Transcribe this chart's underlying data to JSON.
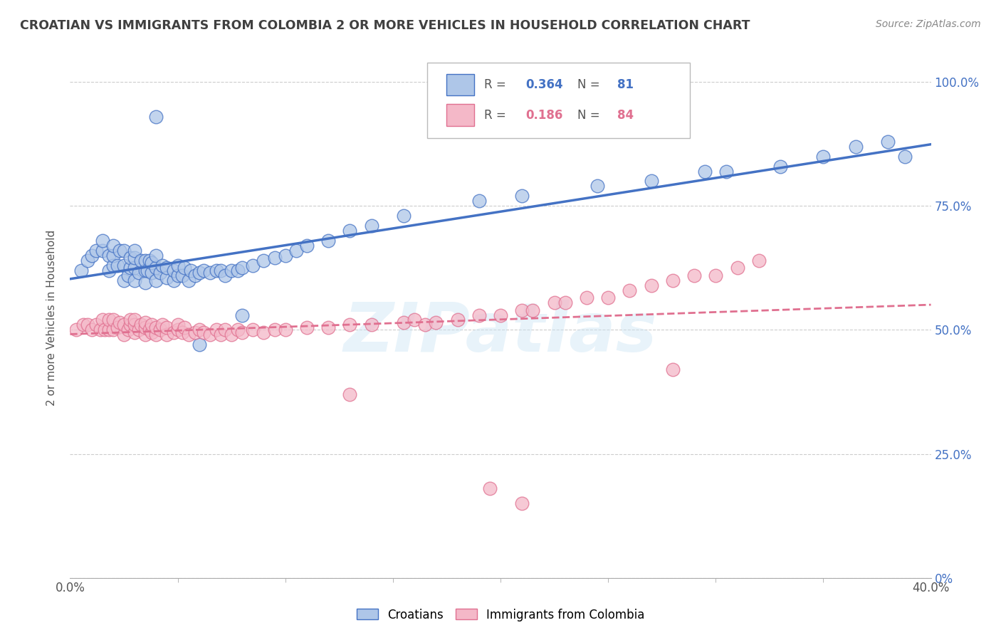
{
  "title": "CROATIAN VS IMMIGRANTS FROM COLOMBIA 2 OR MORE VEHICLES IN HOUSEHOLD CORRELATION CHART",
  "source": "Source: ZipAtlas.com",
  "ylabel": "2 or more Vehicles in Household",
  "xlim": [
    0.0,
    0.4
  ],
  "ylim": [
    0.0,
    1.05
  ],
  "ytick_vals": [
    0.0,
    0.25,
    0.5,
    0.75,
    1.0
  ],
  "ytick_labels_right": [
    "0%",
    "25.0%",
    "50.0%",
    "75.0%",
    "100.0%"
  ],
  "watermark": "ZIPatlas",
  "blue_fill_color": "#aec6e8",
  "blue_edge_color": "#4472c4",
  "pink_fill_color": "#f4b8c8",
  "pink_edge_color": "#e07090",
  "blue_line_color": "#4472c4",
  "pink_line_color": "#e07090",
  "background_color": "#ffffff",
  "grid_color": "#cccccc",
  "title_color": "#404040",
  "source_color": "#888888",
  "right_axis_color": "#4472c4",
  "legend_box_color": "#ffffff",
  "legend_border_color": "#bbbbbb",
  "blue_scatter_x": [
    0.005,
    0.008,
    0.01,
    0.012,
    0.015,
    0.015,
    0.018,
    0.018,
    0.02,
    0.02,
    0.02,
    0.022,
    0.023,
    0.025,
    0.025,
    0.025,
    0.027,
    0.028,
    0.028,
    0.03,
    0.03,
    0.03,
    0.03,
    0.032,
    0.033,
    0.035,
    0.035,
    0.035,
    0.036,
    0.037,
    0.038,
    0.038,
    0.04,
    0.04,
    0.04,
    0.042,
    0.043,
    0.045,
    0.045,
    0.048,
    0.048,
    0.05,
    0.05,
    0.052,
    0.053,
    0.055,
    0.056,
    0.058,
    0.06,
    0.062,
    0.065,
    0.068,
    0.07,
    0.072,
    0.075,
    0.078,
    0.08,
    0.085,
    0.09,
    0.095,
    0.1,
    0.105,
    0.11,
    0.12,
    0.13,
    0.14,
    0.155,
    0.19,
    0.21,
    0.245,
    0.27,
    0.295,
    0.305,
    0.33,
    0.35,
    0.365,
    0.38,
    0.388,
    0.04,
    0.06,
    0.08
  ],
  "blue_scatter_y": [
    0.62,
    0.64,
    0.65,
    0.66,
    0.66,
    0.68,
    0.62,
    0.65,
    0.63,
    0.65,
    0.67,
    0.63,
    0.66,
    0.6,
    0.63,
    0.66,
    0.61,
    0.625,
    0.645,
    0.6,
    0.625,
    0.645,
    0.66,
    0.615,
    0.64,
    0.595,
    0.62,
    0.64,
    0.62,
    0.64,
    0.615,
    0.635,
    0.6,
    0.625,
    0.65,
    0.615,
    0.63,
    0.605,
    0.625,
    0.6,
    0.62,
    0.61,
    0.63,
    0.61,
    0.625,
    0.6,
    0.62,
    0.61,
    0.615,
    0.62,
    0.615,
    0.62,
    0.62,
    0.61,
    0.62,
    0.62,
    0.625,
    0.63,
    0.64,
    0.645,
    0.65,
    0.66,
    0.67,
    0.68,
    0.7,
    0.71,
    0.73,
    0.76,
    0.77,
    0.79,
    0.8,
    0.82,
    0.82,
    0.83,
    0.85,
    0.87,
    0.88,
    0.85,
    0.93,
    0.47,
    0.53
  ],
  "pink_scatter_x": [
    0.003,
    0.006,
    0.008,
    0.01,
    0.012,
    0.014,
    0.015,
    0.016,
    0.018,
    0.018,
    0.02,
    0.02,
    0.022,
    0.023,
    0.025,
    0.025,
    0.027,
    0.028,
    0.028,
    0.03,
    0.03,
    0.03,
    0.032,
    0.033,
    0.035,
    0.035,
    0.035,
    0.037,
    0.038,
    0.038,
    0.04,
    0.04,
    0.042,
    0.043,
    0.045,
    0.045,
    0.048,
    0.05,
    0.05,
    0.052,
    0.053,
    0.055,
    0.058,
    0.06,
    0.062,
    0.065,
    0.068,
    0.07,
    0.072,
    0.075,
    0.078,
    0.08,
    0.085,
    0.09,
    0.095,
    0.1,
    0.11,
    0.12,
    0.13,
    0.14,
    0.155,
    0.16,
    0.165,
    0.17,
    0.18,
    0.19,
    0.2,
    0.21,
    0.215,
    0.225,
    0.23,
    0.24,
    0.25,
    0.26,
    0.27,
    0.28,
    0.29,
    0.3,
    0.31,
    0.32,
    0.13,
    0.195,
    0.21,
    0.28
  ],
  "pink_scatter_y": [
    0.5,
    0.51,
    0.51,
    0.5,
    0.51,
    0.5,
    0.52,
    0.5,
    0.5,
    0.52,
    0.5,
    0.52,
    0.505,
    0.515,
    0.49,
    0.51,
    0.5,
    0.51,
    0.52,
    0.495,
    0.51,
    0.52,
    0.5,
    0.51,
    0.49,
    0.505,
    0.515,
    0.5,
    0.495,
    0.51,
    0.49,
    0.505,
    0.5,
    0.51,
    0.49,
    0.505,
    0.495,
    0.5,
    0.51,
    0.495,
    0.505,
    0.49,
    0.495,
    0.5,
    0.495,
    0.49,
    0.5,
    0.49,
    0.5,
    0.49,
    0.5,
    0.495,
    0.5,
    0.495,
    0.5,
    0.5,
    0.505,
    0.505,
    0.51,
    0.51,
    0.515,
    0.52,
    0.51,
    0.515,
    0.52,
    0.53,
    0.53,
    0.54,
    0.54,
    0.555,
    0.555,
    0.565,
    0.565,
    0.58,
    0.59,
    0.6,
    0.61,
    0.61,
    0.625,
    0.64,
    0.37,
    0.18,
    0.15,
    0.42
  ]
}
